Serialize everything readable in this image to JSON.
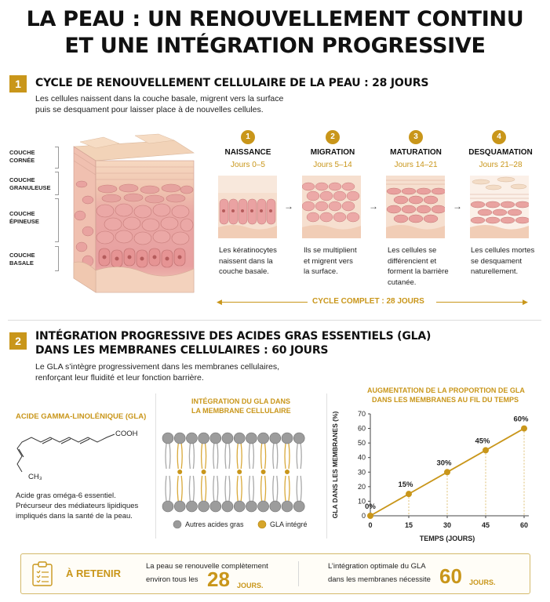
{
  "title": {
    "line1": "LA PEAU : UN RENOUVELLEMENT CONTINU",
    "line2": "ET UNE INTÉGRATION PROGRESSIVE"
  },
  "section1": {
    "number": "1",
    "title": "CYCLE DE RENOUVELLEMENT CELLULAIRE DE LA PEAU : 28 JOURS",
    "desc1": "Les cellules naissent dans la couche basale, migrent vers la surface",
    "desc2": "puis se desquament pour laisser place à de nouvelles cellules.",
    "layers": [
      {
        "line1": "COUCHE",
        "line2": "CORNÉE"
      },
      {
        "line1": "COUCHE",
        "line2": "GRANULEUSE"
      },
      {
        "line1": "COUCHE",
        "line2": "ÉPINEUSE"
      },
      {
        "line1": "COUCHE",
        "line2": "BASALE"
      }
    ],
    "stages": [
      {
        "num": "1",
        "name": "NAISSANCE",
        "days": "Jours 0–5",
        "text": [
          "Les kératinocytes",
          "naissent dans la",
          "couche basale."
        ]
      },
      {
        "num": "2",
        "name": "MIGRATION",
        "days": "Jours 5–14",
        "text": [
          "Ils se multiplient",
          "et migrent vers",
          "la surface."
        ]
      },
      {
        "num": "3",
        "name": "MATURATION",
        "days": "Jours 14–21",
        "text": [
          "Les cellules se",
          "différencient et",
          "forment la barrière",
          "cutanée."
        ]
      },
      {
        "num": "4",
        "name": "DESQUAMATION",
        "days": "Jours 21–28",
        "text": [
          "Les cellules mortes",
          "se desquament",
          "naturellement."
        ]
      }
    ],
    "arrow": "→",
    "cycle_label": "CYCLE COMPLET : 28 JOURS"
  },
  "section2": {
    "number": "2",
    "title1": "INTÉGRATION PROGRESSIVE DES ACIDES GRAS ESSENTIELS (GLA)",
    "title2": "DANS LES MEMBRANES CELLULAIRES : 60 JOURS",
    "desc1": "Le GLA s’intègre progressivement dans les membranes cellulaires,",
    "desc2": "renforçant leur fluidité et leur fonction barrière.",
    "molecule": {
      "heading": "ACIDE GAMMA-LINOLÉNIQUE (GLA)",
      "cooh": "COOH",
      "ch3": "CH₃",
      "text": [
        "Acide gras oméga-6 essentiel.",
        "Précurseur des médiateurs lipidiques",
        "impliqués dans la santé de la peau."
      ]
    },
    "membrane": {
      "heading1": "INTÉGRATION DU GLA DANS",
      "heading2": "LA MEMBRANE CELLULAIRE",
      "legend_other": "Autres acides gras",
      "legend_gla": "GLA intégré"
    },
    "chart_heading1": "AUGMENTATION DE LA PROPORTION DE GLA",
    "chart_heading2": "DANS LES MEMBRANES AU FIL DU TEMPS"
  },
  "chart_data": {
    "type": "line",
    "x": [
      0,
      15,
      30,
      45,
      60
    ],
    "values": [
      0,
      15,
      30,
      45,
      60
    ],
    "data_labels": [
      "0%",
      "15%",
      "30%",
      "45%",
      "60%"
    ],
    "xlabel": "TEMPS (JOURS)",
    "ylabel": "GLA DANS LES MEMBRANES (%)",
    "xticks": [
      "0",
      "15",
      "30",
      "45",
      "60"
    ],
    "yticks": [
      "0",
      "10",
      "20",
      "30",
      "40",
      "50",
      "60",
      "70"
    ],
    "xlim": [
      0,
      60
    ],
    "ylim": [
      0,
      70
    ],
    "color": "#c9961a"
  },
  "retenir": {
    "label": "À RETENIR",
    "text1a": "La peau se renouvelle complètement",
    "text1b": "environ tous les",
    "num1": "28",
    "jours1": "JOURS.",
    "text2a": "L’intégration optimale du GLA",
    "text2b": "dans les membranes nécessite",
    "num2": "60",
    "jours2": "JOURS."
  },
  "colors": {
    "accent": "#c9961a",
    "skin_pink": "#e8a0a0",
    "skin_light": "#f3d2bd"
  }
}
